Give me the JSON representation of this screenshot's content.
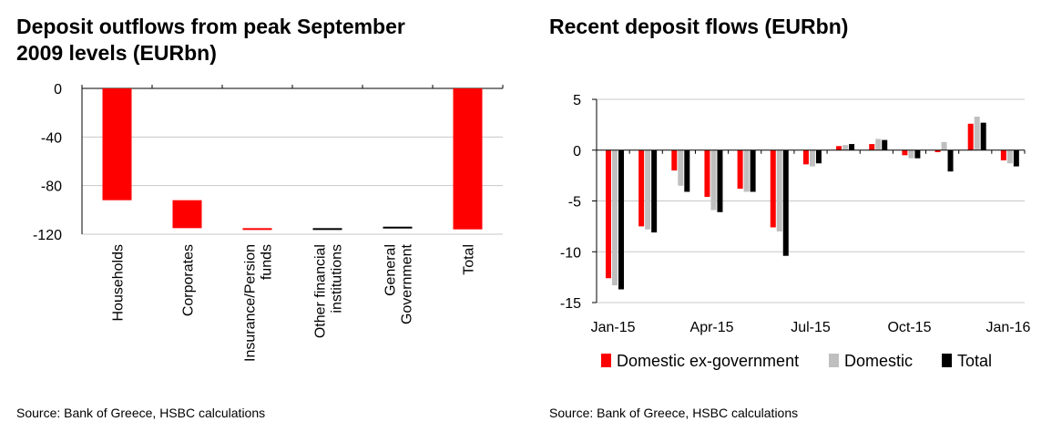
{
  "colors": {
    "red": "#ff0000",
    "grey": "#bfbfbf",
    "black": "#000000",
    "grid": "#c8c8c8"
  },
  "left": {
    "title_line1": "Deposit outflows from peak September",
    "title_line2": "2009 levels (EURbn)",
    "source": "Source: Bank of Greece, HSBC calculations"
  },
  "right": {
    "title": "Recent deposit flows (EURbn)",
    "source": "Source: Bank of Greece, HSBC calculations"
  },
  "chart_data": [
    {
      "type": "bar",
      "subtype": "waterfall",
      "title": "Deposit outflows from peak September 2009 levels (EURbn)",
      "categories": [
        [
          "Households"
        ],
        [
          "Corporates"
        ],
        [
          "Insurance/Persion",
          "funds"
        ],
        [
          "Other financial",
          "institutions"
        ],
        [
          "General",
          "Government"
        ],
        [
          "Total"
        ]
      ],
      "bars": [
        {
          "start": 0,
          "end": -92
        },
        {
          "start": -92,
          "end": -115
        },
        {
          "start": -115,
          "end": -116.5
        },
        {
          "start": -115,
          "end": -116
        },
        {
          "start": -113.8,
          "end": -115
        },
        {
          "start": 0,
          "end": -116
        }
      ],
      "ylim": [
        -120,
        0
      ],
      "yticks": [
        0,
        -40,
        -80,
        -120
      ],
      "ytick_labels": [
        "0",
        "-40",
        "-80",
        "-120"
      ],
      "grid": true
    },
    {
      "type": "bar",
      "subtype": "grouped",
      "title": "Recent deposit flows (EURbn)",
      "x_tick_labels": [
        "Jan-15",
        "Apr-15",
        "Jul-15",
        "Oct-15",
        "Jan-16"
      ],
      "series": [
        {
          "name": "Domestic ex-government",
          "color": "#ff0000",
          "values": [
            -12.6,
            -7.5,
            -2.0,
            -4.6,
            -3.8,
            -7.6,
            -1.4,
            0.4,
            0.6,
            -0.5,
            -0.2,
            2.6,
            -1.0
          ]
        },
        {
          "name": "Domestic",
          "color": "#bfbfbf",
          "values": [
            -13.3,
            -7.8,
            -3.5,
            -5.9,
            -4.1,
            -8.0,
            -1.6,
            0.5,
            1.1,
            -0.8,
            0.8,
            3.3,
            -1.3
          ]
        },
        {
          "name": "Total",
          "color": "#000000",
          "values": [
            -13.7,
            -8.1,
            -4.1,
            -6.1,
            -4.1,
            -10.4,
            -1.3,
            0.6,
            1.0,
            -0.8,
            -2.1,
            2.7,
            -1.6
          ]
        }
      ],
      "ylim": [
        -15,
        5
      ],
      "yticks": [
        5,
        0,
        -5,
        -10,
        -15
      ],
      "ytick_labels": [
        "5",
        "0",
        "-5",
        "-10",
        "-15"
      ],
      "legend": "bottom",
      "grid": true
    }
  ]
}
